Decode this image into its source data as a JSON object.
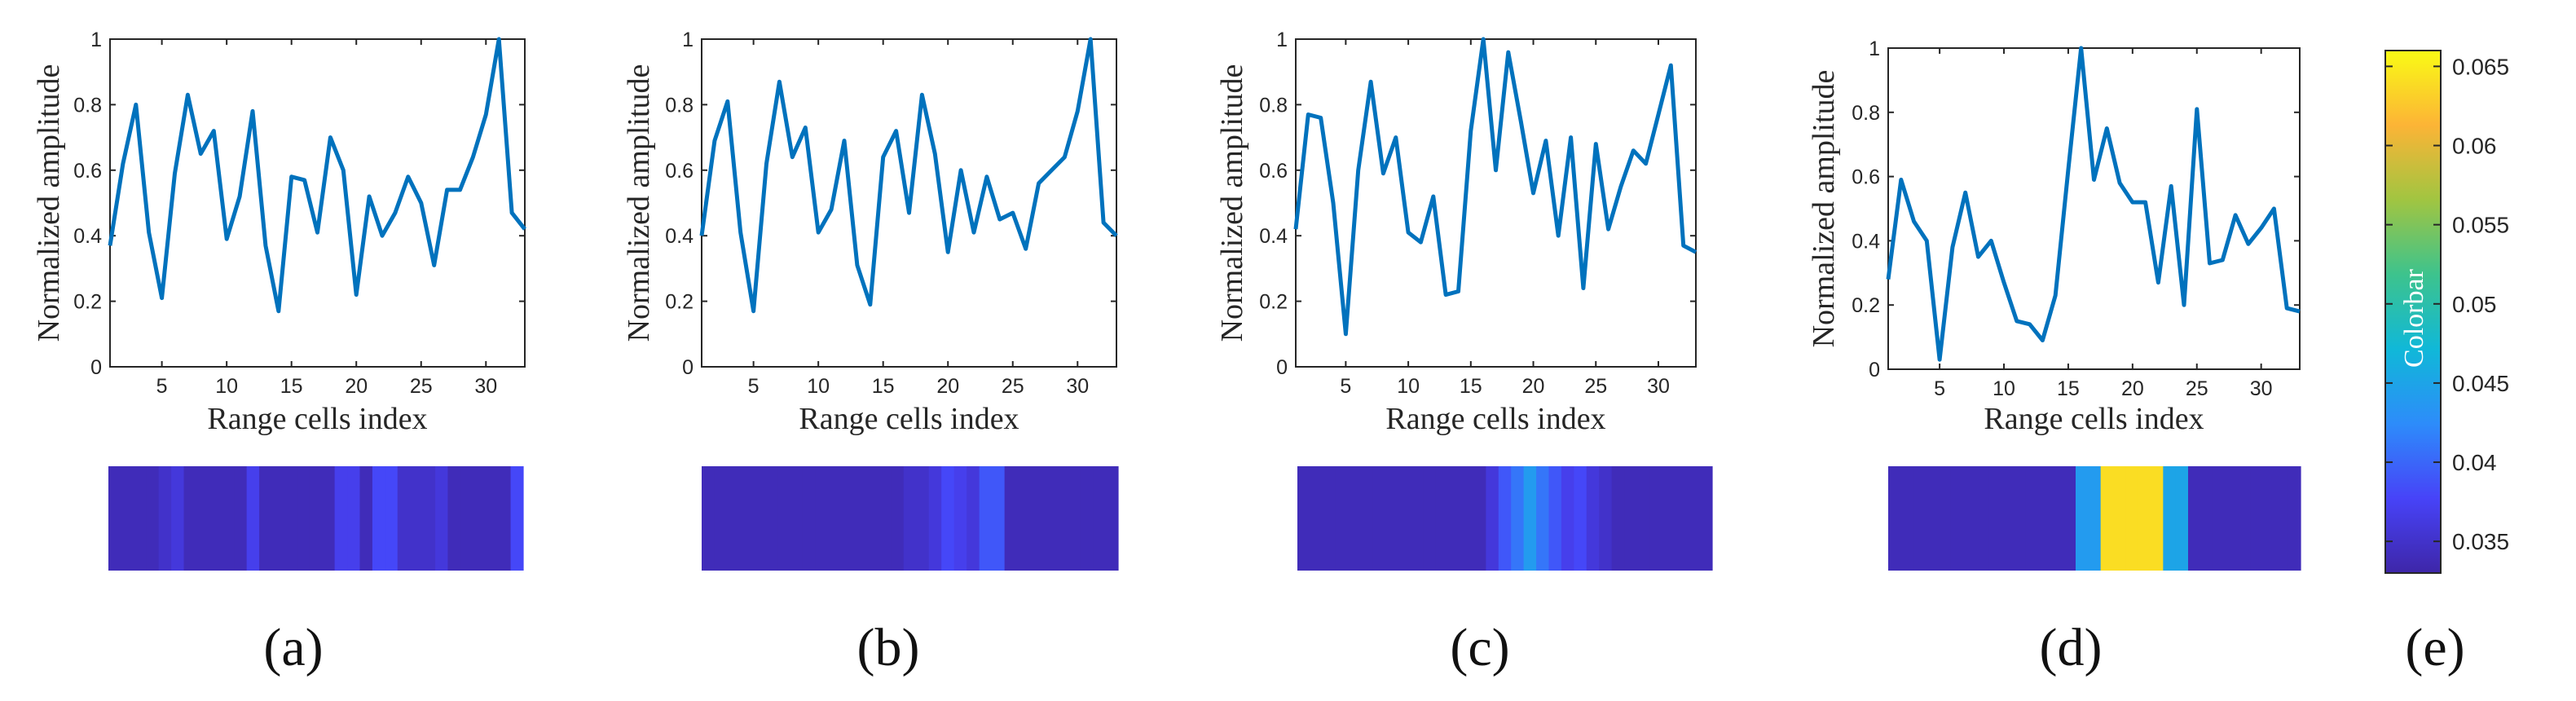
{
  "chart_data": [
    {
      "type": "line",
      "panel_label": "(a)",
      "xlabel": "Range cells index",
      "ylabel": "Normalized amplitude",
      "xlim": [
        1,
        33
      ],
      "ylim": [
        0,
        1
      ],
      "xticks": [
        "5",
        "10",
        "15",
        "20",
        "25",
        "30"
      ],
      "yticks": [
        "0",
        "0.2",
        "0.4",
        "0.6",
        "0.8",
        "1"
      ],
      "x": [
        1,
        2,
        3,
        4,
        5,
        6,
        7,
        8,
        9,
        10,
        11,
        12,
        13,
        14,
        15,
        16,
        17,
        18,
        19,
        20,
        21,
        22,
        23,
        24,
        25,
        26,
        27,
        28,
        29,
        30,
        31,
        32,
        33
      ],
      "y": [
        0.37,
        0.62,
        0.8,
        0.41,
        0.21,
        0.59,
        0.83,
        0.65,
        0.72,
        0.39,
        0.52,
        0.78,
        0.37,
        0.17,
        0.58,
        0.57,
        0.41,
        0.7,
        0.6,
        0.22,
        0.52,
        0.4,
        0.47,
        0.58,
        0.5,
        0.31,
        0.54,
        0.54,
        0.64,
        0.77,
        1.0,
        0.47,
        0.42
      ],
      "heatmap_values": [
        0.034,
        0.034,
        0.034,
        0.034,
        0.035,
        0.036,
        0.034,
        0.034,
        0.034,
        0.034,
        0.034,
        0.037,
        0.034,
        0.034,
        0.034,
        0.034,
        0.034,
        0.034,
        0.037,
        0.037,
        0.034,
        0.038,
        0.038,
        0.035,
        0.035,
        0.035,
        0.036,
        0.034,
        0.034,
        0.034,
        0.034,
        0.034,
        0.038
      ]
    },
    {
      "type": "line",
      "panel_label": "(b)",
      "xlabel": "Range cells index",
      "ylabel": "Normalized amplitude",
      "xlim": [
        1,
        33
      ],
      "ylim": [
        0,
        1
      ],
      "xticks": [
        "5",
        "10",
        "15",
        "20",
        "25",
        "30"
      ],
      "yticks": [
        "0",
        "0.2",
        "0.4",
        "0.6",
        "0.8",
        "1"
      ],
      "x": [
        1,
        2,
        3,
        4,
        5,
        6,
        7,
        8,
        9,
        10,
        11,
        12,
        13,
        14,
        15,
        16,
        17,
        18,
        19,
        20,
        21,
        22,
        23,
        24,
        25,
        26,
        27,
        28,
        29,
        30,
        31,
        32,
        33
      ],
      "y": [
        0.4,
        0.69,
        0.81,
        0.41,
        0.17,
        0.62,
        0.87,
        0.64,
        0.73,
        0.41,
        0.48,
        0.69,
        0.31,
        0.19,
        0.64,
        0.72,
        0.47,
        0.83,
        0.65,
        0.35,
        0.6,
        0.41,
        0.58,
        0.45,
        0.47,
        0.36,
        0.56,
        0.6,
        0.64,
        0.78,
        1.0,
        0.44,
        0.4
      ],
      "heatmap_values": [
        0.034,
        0.034,
        0.034,
        0.034,
        0.034,
        0.034,
        0.034,
        0.034,
        0.034,
        0.034,
        0.034,
        0.034,
        0.034,
        0.034,
        0.034,
        0.034,
        0.035,
        0.035,
        0.036,
        0.038,
        0.037,
        0.036,
        0.039,
        0.039,
        0.034,
        0.034,
        0.034,
        0.034,
        0.034,
        0.034,
        0.034,
        0.034,
        0.034
      ]
    },
    {
      "type": "line",
      "panel_label": "(c)",
      "xlabel": "Range cells index",
      "ylabel": "Normalized amplitude",
      "xlim": [
        1,
        33
      ],
      "ylim": [
        0,
        1
      ],
      "xticks": [
        "5",
        "10",
        "15",
        "20",
        "25",
        "30"
      ],
      "yticks": [
        "0",
        "0.2",
        "0.4",
        "0.6",
        "0.8",
        "1"
      ],
      "x": [
        1,
        2,
        3,
        4,
        5,
        6,
        7,
        8,
        9,
        10,
        11,
        12,
        13,
        14,
        15,
        16,
        17,
        18,
        19,
        20,
        21,
        22,
        23,
        24,
        25,
        26,
        27,
        28,
        29,
        30,
        31,
        32,
        33
      ],
      "y": [
        0.42,
        0.77,
        0.76,
        0.5,
        0.1,
        0.6,
        0.87,
        0.59,
        0.7,
        0.41,
        0.38,
        0.52,
        0.22,
        0.23,
        0.72,
        1.0,
        0.6,
        0.96,
        0.75,
        0.53,
        0.69,
        0.4,
        0.7,
        0.24,
        0.68,
        0.42,
        0.55,
        0.66,
        0.62,
        0.77,
        0.92,
        0.37,
        0.35
      ],
      "heatmap_values": [
        0.034,
        0.034,
        0.034,
        0.034,
        0.034,
        0.034,
        0.034,
        0.034,
        0.034,
        0.034,
        0.034,
        0.034,
        0.034,
        0.034,
        0.034,
        0.036,
        0.039,
        0.041,
        0.044,
        0.041,
        0.039,
        0.037,
        0.038,
        0.036,
        0.035,
        0.034,
        0.034,
        0.034,
        0.034,
        0.034,
        0.034,
        0.034,
        0.034
      ]
    },
    {
      "type": "line",
      "panel_label": "(d)",
      "xlabel": "Range cells index",
      "ylabel": "Normalized amplitude",
      "xlim": [
        1,
        33
      ],
      "ylim": [
        0,
        1
      ],
      "xticks": [
        "5",
        "10",
        "15",
        "20",
        "25",
        "30"
      ],
      "yticks": [
        "0",
        "0.2",
        "0.4",
        "0.6",
        "0.8",
        "1"
      ],
      "x": [
        1,
        2,
        3,
        4,
        5,
        6,
        7,
        8,
        9,
        10,
        11,
        12,
        13,
        14,
        15,
        16,
        17,
        18,
        19,
        20,
        21,
        22,
        23,
        24,
        25,
        26,
        27,
        28,
        29,
        30,
        31,
        32,
        33
      ],
      "y": [
        0.28,
        0.59,
        0.46,
        0.4,
        0.03,
        0.38,
        0.55,
        0.35,
        0.4,
        0.27,
        0.15,
        0.14,
        0.09,
        0.23,
        0.62,
        1.0,
        0.59,
        0.75,
        0.58,
        0.52,
        0.52,
        0.27,
        0.57,
        0.2,
        0.81,
        0.33,
        0.34,
        0.48,
        0.39,
        0.44,
        0.5,
        0.19,
        0.18
      ],
      "heatmap_values": [
        0.034,
        0.034,
        0.034,
        0.034,
        0.034,
        0.034,
        0.034,
        0.034,
        0.034,
        0.034,
        0.034,
        0.034,
        0.034,
        0.034,
        0.034,
        0.044,
        0.044,
        0.064,
        0.064,
        0.064,
        0.064,
        0.064,
        0.045,
        0.045,
        0.034,
        0.034,
        0.034,
        0.034,
        0.034,
        0.034,
        0.034,
        0.034,
        0.034
      ]
    },
    {
      "type": "heatmap",
      "panel_label": "(e)",
      "colorbar_title": "Colorbar",
      "range": [
        0.033,
        0.066
      ],
      "ticks": [
        "0.035",
        "0.04",
        "0.045",
        "0.05",
        "0.055",
        "0.06",
        "0.065"
      ],
      "tick_values": [
        0.035,
        0.04,
        0.045,
        0.05,
        0.055,
        0.06,
        0.065
      ],
      "colormap": [
        "#3e26a8",
        "#4743f8",
        "#2d8cfa",
        "#10b8d8",
        "#3dc38d",
        "#a1c541",
        "#fcb436",
        "#f9fb15"
      ]
    }
  ]
}
